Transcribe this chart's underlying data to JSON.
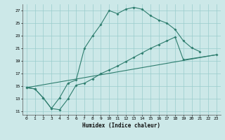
{
  "xlabel": "Humidex (Indice chaleur)",
  "line1_x": [
    0,
    1,
    2,
    3,
    4,
    5,
    6,
    7,
    8,
    9,
    10,
    11,
    12,
    13,
    14,
    15,
    16,
    17,
    18,
    19,
    20,
    21
  ],
  "line1_y": [
    14.8,
    14.6,
    13.2,
    11.5,
    13.2,
    15.5,
    16.0,
    21.0,
    23.0,
    24.8,
    27.0,
    26.5,
    27.2,
    27.5,
    27.2,
    26.2,
    25.5,
    25.0,
    24.0,
    22.2,
    21.1,
    20.5
  ],
  "line2_x": [
    0,
    1,
    2,
    3,
    4,
    5,
    6,
    7,
    8,
    9,
    10,
    11,
    12,
    13,
    14,
    15,
    16,
    17,
    18,
    19,
    23
  ],
  "line2_y": [
    14.8,
    14.6,
    13.2,
    11.5,
    11.3,
    13.0,
    15.2,
    15.5,
    16.2,
    17.0,
    17.6,
    18.2,
    18.9,
    19.6,
    20.3,
    21.0,
    21.6,
    22.2,
    22.8,
    19.2,
    20.0
  ],
  "line3_x": [
    0,
    23
  ],
  "line3_y": [
    14.8,
    20.0
  ],
  "color": "#2e7d6e",
  "bg_color": "#cce8e8",
  "grid_color": "#99cccc",
  "xlim": [
    -0.5,
    23.5
  ],
  "ylim": [
    10.5,
    28.0
  ],
  "yticks": [
    11,
    13,
    15,
    17,
    19,
    21,
    23,
    25,
    27
  ],
  "xticks": [
    0,
    1,
    2,
    3,
    4,
    5,
    6,
    7,
    8,
    9,
    10,
    11,
    12,
    13,
    14,
    15,
    16,
    17,
    18,
    19,
    20,
    21,
    22,
    23
  ]
}
